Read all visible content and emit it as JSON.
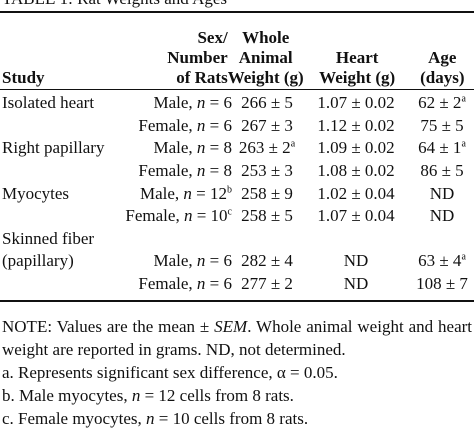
{
  "caption": "TABLE 1: Rat Weights and Ages",
  "table": {
    "header": [
      "Study",
      "Sex/\nNumber\nof Rats",
      "Whole\nAnimal\nWeight (g)",
      "Heart\nWeight (g)",
      "Age\n(days)"
    ],
    "rows": [
      [
        "Isolated heart",
        {
          "parts": [
            "Male, ",
            "n",
            " = 6"
          ]
        },
        "266 ± 5",
        "1.07 ± 0.02",
        {
          "parts": [
            "62 ± 2"
          ],
          "sup": "a"
        }
      ],
      [
        "",
        {
          "parts": [
            "Female, ",
            "n",
            " = 6"
          ]
        },
        "267 ± 3",
        "1.12 ± 0.02",
        "75 ± 5"
      ],
      [
        "Right papillary",
        {
          "parts": [
            "Male, ",
            "n",
            " = 8"
          ]
        },
        {
          "parts": [
            "263 ± 2"
          ],
          "sup": "a"
        },
        "1.09 ± 0.02",
        {
          "parts": [
            "64 ± 1"
          ],
          "sup": "a"
        }
      ],
      [
        "",
        {
          "parts": [
            "Female, ",
            "n",
            " = 8"
          ]
        },
        "253 ± 3",
        "1.08 ± 0.02",
        "86 ± 5"
      ],
      [
        "Myocytes",
        {
          "parts": [
            "Male, ",
            "n",
            " = 12"
          ],
          "sup": "b"
        },
        "258 ± 9",
        "1.02 ± 0.04",
        "ND"
      ],
      [
        "",
        {
          "parts": [
            "Female, ",
            "n",
            " = 10"
          ],
          "sup": "c"
        },
        "258 ± 5",
        "1.07 ± 0.04",
        "ND"
      ],
      [
        "Skinned fiber",
        "",
        "",
        "",
        ""
      ],
      [
        "(papillary)",
        {
          "parts": [
            "Male, ",
            "n",
            " = 6"
          ]
        },
        "282 ± 4",
        "ND",
        {
          "parts": [
            "63 ± 4"
          ],
          "sup": "a"
        }
      ],
      [
        "",
        {
          "parts": [
            "Female, ",
            "n",
            " = 6"
          ]
        },
        "277 ± 2",
        "ND",
        "108 ± 7"
      ]
    ]
  },
  "notes": [
    [
      "NOTE: Values are the mean ± ",
      "SEM",
      ". Whole animal weight and heart weight are reported in grams. ND, not determined."
    ],
    [
      "a. Represents significant sex difference, α = 0.05."
    ],
    [
      "b. Male myocytes, ",
      "n",
      " = 12 cells from 8 rats."
    ],
    [
      "c. Female myocytes, ",
      "n",
      " = 10 cells from 8 rats."
    ]
  ]
}
